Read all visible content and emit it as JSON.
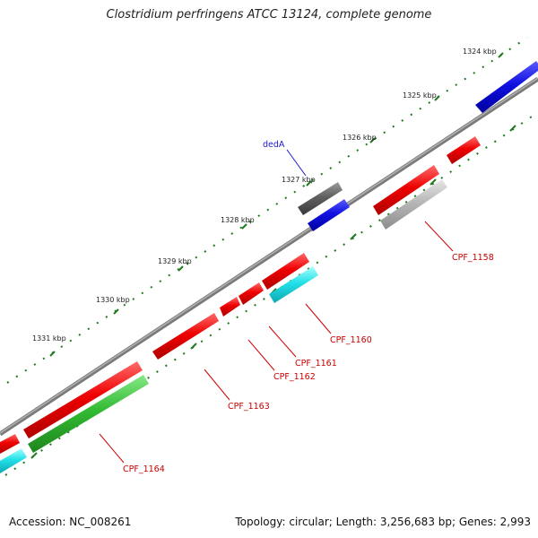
{
  "title": "Clostridium perfringens ATCC 13124, complete genome",
  "footer": {
    "accession": "Accession: NC_008261",
    "summary": "Topology: circular; Length: 3,256,683 bp; Genes: 2,993"
  },
  "colors": {
    "backbone": "#808080",
    "cds": "#ee0000",
    "rrna": "#1010e0",
    "other": "#606060",
    "trna": "#22e0e8",
    "pseudo": "#b8b8b8",
    "misc": "#33bb33",
    "tick": "#1f7a1f",
    "label_gene": "#cc0000",
    "label_named": "#1a1acc"
  },
  "scale_labels": [
    {
      "kbp": 1324,
      "text": "1324 kbp"
    },
    {
      "kbp": 1325,
      "text": "1325 kbp"
    },
    {
      "kbp": 1326,
      "text": "1326 kbp"
    },
    {
      "kbp": 1327,
      "text": "1327 kbp"
    },
    {
      "kbp": 1328,
      "text": "1328 kbp"
    },
    {
      "kbp": 1329,
      "text": "1329 kbp"
    },
    {
      "kbp": 1330,
      "text": "1330 kbp"
    },
    {
      "kbp": 1331,
      "text": "1331 kbp"
    }
  ],
  "gene_labels": [
    {
      "text": "dedA",
      "kind": "named"
    },
    {
      "text": "CPF_1158",
      "kind": "gene"
    },
    {
      "text": "CPF_1160",
      "kind": "gene"
    },
    {
      "text": "CPF_1161",
      "kind": "gene"
    },
    {
      "text": "CPF_1162",
      "kind": "gene"
    },
    {
      "text": "CPF_1163",
      "kind": "gene"
    },
    {
      "text": "CPF_1164",
      "kind": "gene"
    }
  ]
}
